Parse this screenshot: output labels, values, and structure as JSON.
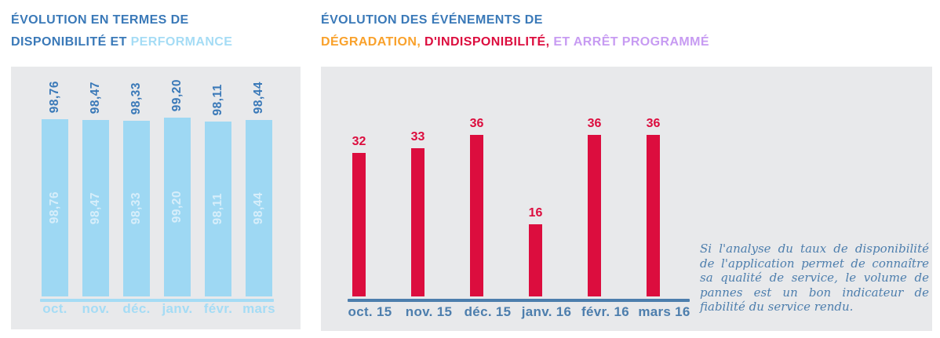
{
  "colors": {
    "panel_background": "#E8E9EB",
    "title_blue": "#3A79B8",
    "light_blue": "#A5DCF5",
    "availability_bar": "#9ED8F3",
    "availability_inner_label": "#D7EEFA",
    "steel_blue": "#4D7EAD",
    "events_bar_red": "#DC0D3E",
    "orange": "#F9A12B",
    "lavender": "#C79BF2"
  },
  "titles": {
    "left": {
      "line1": "ÉVOLUTION EN TERMES DE",
      "line2a": "DISPONIBILITÉ ET ",
      "line2b": "PERFORMANCE"
    },
    "right": {
      "line1": "ÉVOLUTION DES ÉVÉNEMENTS DE",
      "line2a": "DÉGRADATION, ",
      "line2b": "D'INDISPONIBILITÉ, ",
      "line2c": "ET ARRÊT PROGRAMMÉ"
    }
  },
  "chart_data": [
    {
      "type": "bar",
      "title": "ÉVOLUTION EN TERMES DE DISPONIBILITÉ ET PERFORMANCE",
      "categories": [
        "oct.",
        "nov.",
        "déc.",
        "janv.",
        "févr.",
        "mars"
      ],
      "values": [
        98.76,
        98.47,
        98.33,
        99.2,
        98.11,
        98.44
      ],
      "value_labels": [
        "98,76",
        "98,47",
        "98,33",
        "99,20",
        "98,11",
        "98,44"
      ],
      "bar_color": "#9ED8F3",
      "value_label_color": "#3A79B8",
      "inner_label_color": "#D7EEFA",
      "category_color": "#A5DCF5",
      "axis_color": "#A5DCF5",
      "grid": false,
      "legend": false,
      "value_labels_rotated": true
    },
    {
      "type": "bar",
      "title": "ÉVOLUTION DES ÉVÉNEMENTS DE DÉGRADATION, D'INDISPONIBILITÉ, ET ARRÊT PROGRAMMÉ",
      "categories": [
        "oct. 15",
        "nov. 15",
        "déc. 15",
        "janv. 16",
        "févr. 16",
        "mars 16"
      ],
      "values": [
        32,
        33,
        36,
        16,
        36,
        36
      ],
      "value_labels": [
        "32",
        "33",
        "36",
        "16",
        "36",
        "36"
      ],
      "bar_color": "#DC0D3E",
      "value_label_color": "#DC0D3E",
      "category_color": "#4D7EAD",
      "axis_color": "#4D7EAD",
      "grid": false,
      "legend": false,
      "ylim": [
        0,
        40
      ]
    }
  ],
  "annotation": {
    "text": "Si l'analyse du taux de disponibilité de l'application permet de connaître sa qualité de service, le volume de pannes est un bon indicateur de fiabilité du service rendu."
  }
}
